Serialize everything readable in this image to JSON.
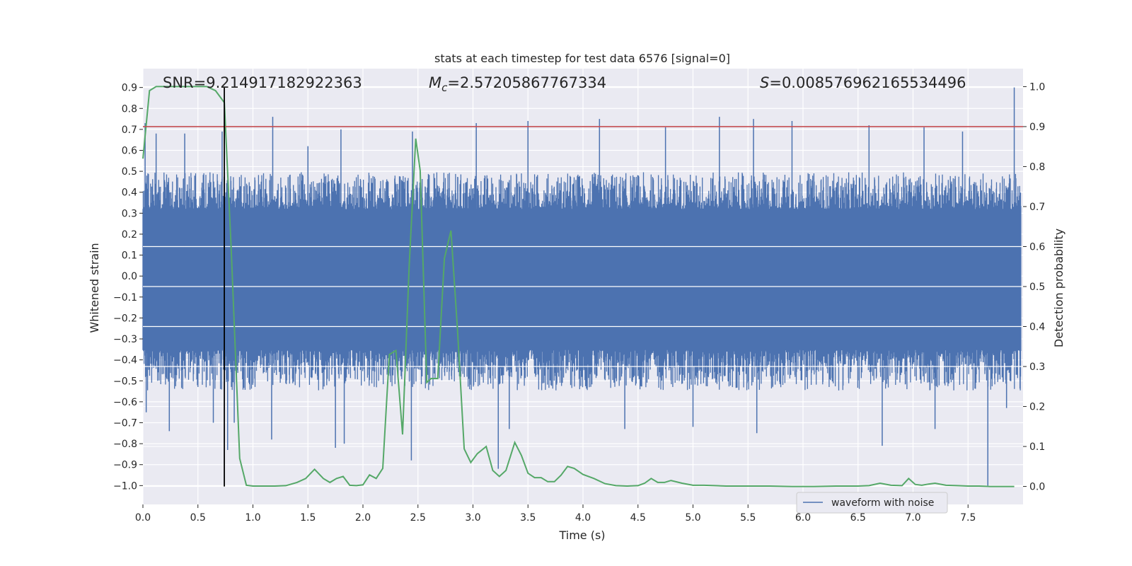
{
  "chart_data": {
    "type": "line",
    "title": "stats at each timestep for test data 6576 [signal=0]",
    "xlabel": "Time (s)",
    "ylabel_left": "Whitened strain",
    "ylabel_right": "Detection probability",
    "xlim": [
      0.0,
      8.0
    ],
    "ylim_left": [
      -1.09,
      0.99
    ],
    "ylim_right": [
      -0.045,
      1.045
    ],
    "x_ticks": [
      "0.0",
      "0.5",
      "1.0",
      "1.5",
      "2.0",
      "2.5",
      "3.0",
      "3.5",
      "4.0",
      "4.5",
      "5.0",
      "5.5",
      "6.0",
      "6.5",
      "7.0",
      "7.5"
    ],
    "y_left_ticks": [
      "0.9",
      "0.8",
      "0.7",
      "0.6",
      "0.5",
      "0.4",
      "0.3",
      "0.2",
      "0.1",
      "0.0",
      "-0.1",
      "-0.2",
      "-0.3",
      "-0.4",
      "-0.5",
      "-0.6",
      "-0.7",
      "-0.8",
      "-0.9",
      "-1.0"
    ],
    "y_right_ticks": [
      "1.0",
      "0.9",
      "0.8",
      "0.7",
      "0.6",
      "0.5",
      "0.4",
      "0.3",
      "0.2",
      "0.1",
      "0.0"
    ],
    "grid": true,
    "annotations": {
      "snr": "SNR=9.214917182922363",
      "mc_symbol": "M",
      "mc_sub": "c",
      "mc_value": "=2.57205867767334",
      "s_symbol": "S",
      "s_value": "=0.008576962165534496"
    },
    "threshold_line": {
      "value": 0.9,
      "axis": "right",
      "color": "#c44e52"
    },
    "marker_line": {
      "x": 0.74,
      "color": "#000000"
    },
    "legend": {
      "label": "waveform with noise",
      "position": "lower-right"
    },
    "series": [
      {
        "name": "waveform with noise",
        "axis": "left",
        "color": "#4c72b0",
        "kind": "noise",
        "x_range": [
          0.0,
          7.98
        ],
        "typical_envelope": [
          -0.43,
          0.39
        ],
        "spikes_up": [
          {
            "x": 0.02,
            "y": 0.73
          },
          {
            "x": 0.12,
            "y": 0.68
          },
          {
            "x": 0.38,
            "y": 0.68
          },
          {
            "x": 0.72,
            "y": 0.69
          },
          {
            "x": 1.18,
            "y": 0.76
          },
          {
            "x": 1.5,
            "y": 0.62
          },
          {
            "x": 1.8,
            "y": 0.7
          },
          {
            "x": 2.45,
            "y": 0.69
          },
          {
            "x": 3.03,
            "y": 0.73
          },
          {
            "x": 3.5,
            "y": 0.74
          },
          {
            "x": 4.15,
            "y": 0.75
          },
          {
            "x": 4.75,
            "y": 0.71
          },
          {
            "x": 5.24,
            "y": 0.76
          },
          {
            "x": 5.55,
            "y": 0.75
          },
          {
            "x": 5.9,
            "y": 0.74
          },
          {
            "x": 6.6,
            "y": 0.72
          },
          {
            "x": 7.1,
            "y": 0.71
          },
          {
            "x": 7.45,
            "y": 0.69
          },
          {
            "x": 7.92,
            "y": 0.9
          }
        ],
        "spikes_down": [
          {
            "x": 0.03,
            "y": -0.65
          },
          {
            "x": 0.24,
            "y": -0.74
          },
          {
            "x": 0.64,
            "y": -0.7
          },
          {
            "x": 0.77,
            "y": -0.83
          },
          {
            "x": 0.83,
            "y": -0.7
          },
          {
            "x": 1.17,
            "y": -0.78
          },
          {
            "x": 1.75,
            "y": -0.82
          },
          {
            "x": 1.83,
            "y": -0.8
          },
          {
            "x": 2.44,
            "y": -0.88
          },
          {
            "x": 3.23,
            "y": -0.92
          },
          {
            "x": 3.33,
            "y": -0.73
          },
          {
            "x": 4.38,
            "y": -0.73
          },
          {
            "x": 5.0,
            "y": -0.72
          },
          {
            "x": 5.58,
            "y": -0.75
          },
          {
            "x": 6.72,
            "y": -0.81
          },
          {
            "x": 7.2,
            "y": -0.73
          },
          {
            "x": 7.68,
            "y": -1.0
          },
          {
            "x": 7.85,
            "y": -0.63
          }
        ]
      },
      {
        "name": "detection probability",
        "axis": "right",
        "color": "#55a868",
        "kind": "line",
        "x": [
          0.0,
          0.06,
          0.12,
          0.2,
          0.3,
          0.4,
          0.5,
          0.58,
          0.66,
          0.74,
          0.8,
          0.88,
          0.94,
          1.0,
          1.1,
          1.2,
          1.3,
          1.4,
          1.48,
          1.56,
          1.64,
          1.7,
          1.76,
          1.82,
          1.88,
          1.94,
          2.0,
          2.06,
          2.12,
          2.18,
          2.24,
          2.3,
          2.36,
          2.42,
          2.48,
          2.52,
          2.58,
          2.62,
          2.68,
          2.74,
          2.8,
          2.86,
          2.92,
          2.98,
          3.04,
          3.12,
          3.18,
          3.24,
          3.3,
          3.38,
          3.44,
          3.5,
          3.56,
          3.62,
          3.68,
          3.74,
          3.8,
          3.86,
          3.92,
          4.0,
          4.1,
          4.2,
          4.3,
          4.4,
          4.5,
          4.56,
          4.62,
          4.68,
          4.74,
          4.8,
          4.9,
          5.0,
          5.1,
          5.2,
          5.3,
          5.5,
          5.7,
          5.9,
          6.1,
          6.3,
          6.5,
          6.6,
          6.7,
          6.8,
          6.9,
          6.96,
          7.02,
          7.08,
          7.14,
          7.2,
          7.3,
          7.4,
          7.5,
          7.6,
          7.7,
          7.8,
          7.92
        ],
        "y": [
          0.82,
          0.99,
          1.0,
          1.0,
          1.0,
          1.0,
          1.0,
          1.0,
          0.99,
          0.96,
          0.61,
          0.07,
          0.003,
          0.001,
          0.001,
          0.001,
          0.002,
          0.01,
          0.02,
          0.043,
          0.02,
          0.01,
          0.02,
          0.025,
          0.003,
          0.002,
          0.004,
          0.029,
          0.02,
          0.045,
          0.33,
          0.34,
          0.13,
          0.55,
          0.87,
          0.79,
          0.26,
          0.27,
          0.27,
          0.57,
          0.64,
          0.39,
          0.094,
          0.06,
          0.082,
          0.1,
          0.04,
          0.025,
          0.04,
          0.11,
          0.078,
          0.033,
          0.022,
          0.022,
          0.012,
          0.012,
          0.028,
          0.05,
          0.045,
          0.03,
          0.02,
          0.007,
          0.002,
          0.001,
          0.002,
          0.008,
          0.02,
          0.01,
          0.01,
          0.015,
          0.008,
          0.003,
          0.003,
          0.002,
          0.001,
          0.001,
          0.001,
          0.0,
          0.0,
          0.001,
          0.001,
          0.002,
          0.008,
          0.003,
          0.002,
          0.02,
          0.005,
          0.003,
          0.006,
          0.008,
          0.003,
          0.002,
          0.001,
          0.001,
          0.0,
          0.0,
          0.0
        ]
      }
    ]
  }
}
